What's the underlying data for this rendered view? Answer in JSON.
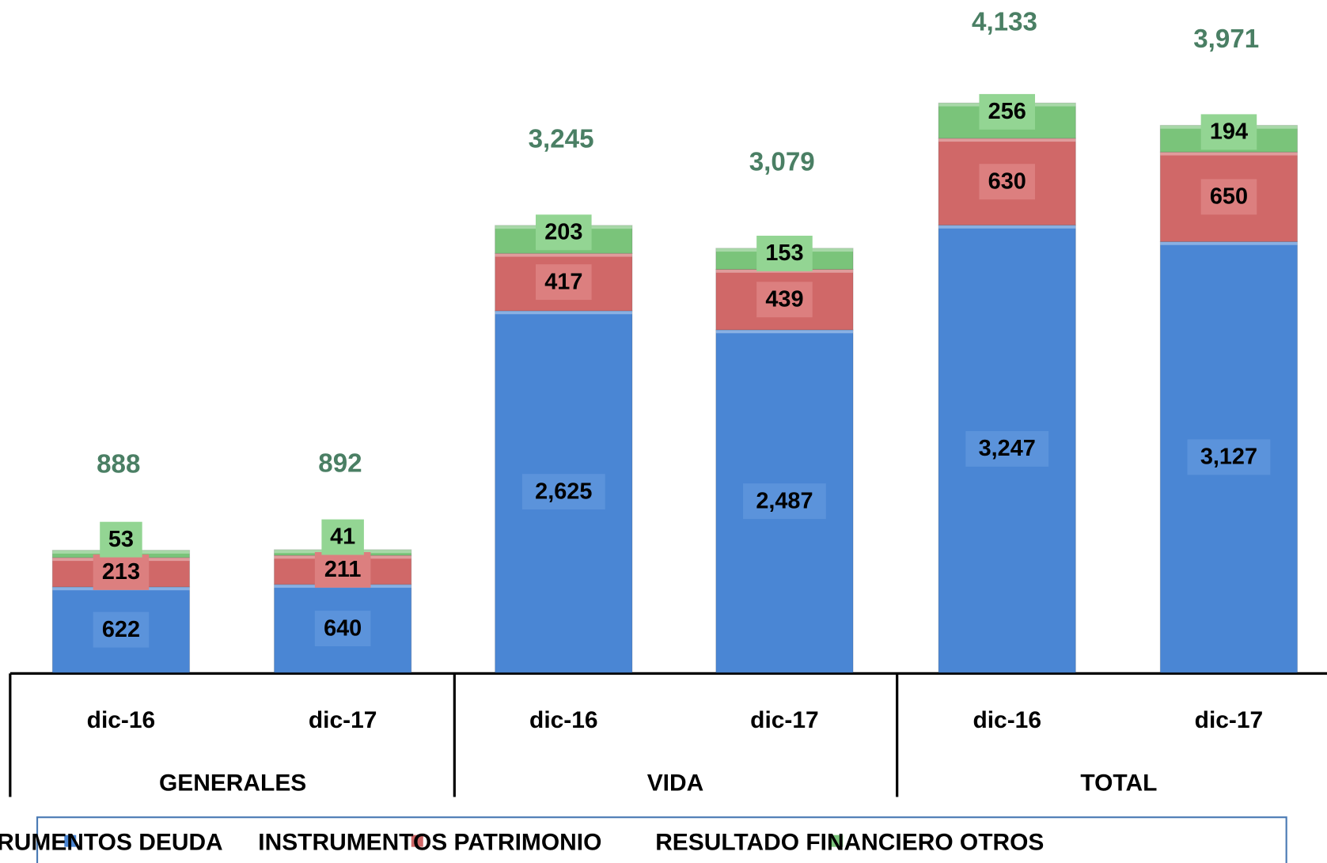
{
  "chart_data": {
    "type": "stacked-bar",
    "categories": [
      "dic-16",
      "dic-17",
      "dic-16",
      "dic-17",
      "dic-16",
      "dic-17"
    ],
    "groups": [
      "GENERALES",
      "VIDA",
      "TOTAL"
    ],
    "series": [
      {
        "name": "INSTRUMENTOS DEUDA",
        "color": "#4a86d4",
        "values": [
          622,
          640,
          2625,
          2487,
          3247,
          3127
        ],
        "value_labels": [
          "622",
          "640",
          "2,625",
          "2,487",
          "3,247",
          "3,127"
        ]
      },
      {
        "name": "INSTRUMENTOS PATRIMONIO",
        "color": "#d06868",
        "values": [
          213,
          211,
          417,
          439,
          630,
          650
        ],
        "value_labels": [
          "213",
          "211",
          "417",
          "439",
          "630",
          "650"
        ]
      },
      {
        "name": "RESULTADO FINANCIERO OTROS",
        "color": "#7ac47a",
        "values": [
          53,
          41,
          203,
          153,
          256,
          194
        ],
        "value_labels": [
          "53",
          "41",
          "203",
          "153",
          "256",
          "194"
        ]
      }
    ],
    "totals": {
      "color": "#4a7f64",
      "values": [
        888,
        892,
        3245,
        3079,
        4133,
        3971
      ],
      "value_labels": [
        "888",
        "892",
        "3,245",
        "3,079",
        "4,133",
        "3,971"
      ]
    },
    "ylim": [
      0,
      4880
    ]
  }
}
